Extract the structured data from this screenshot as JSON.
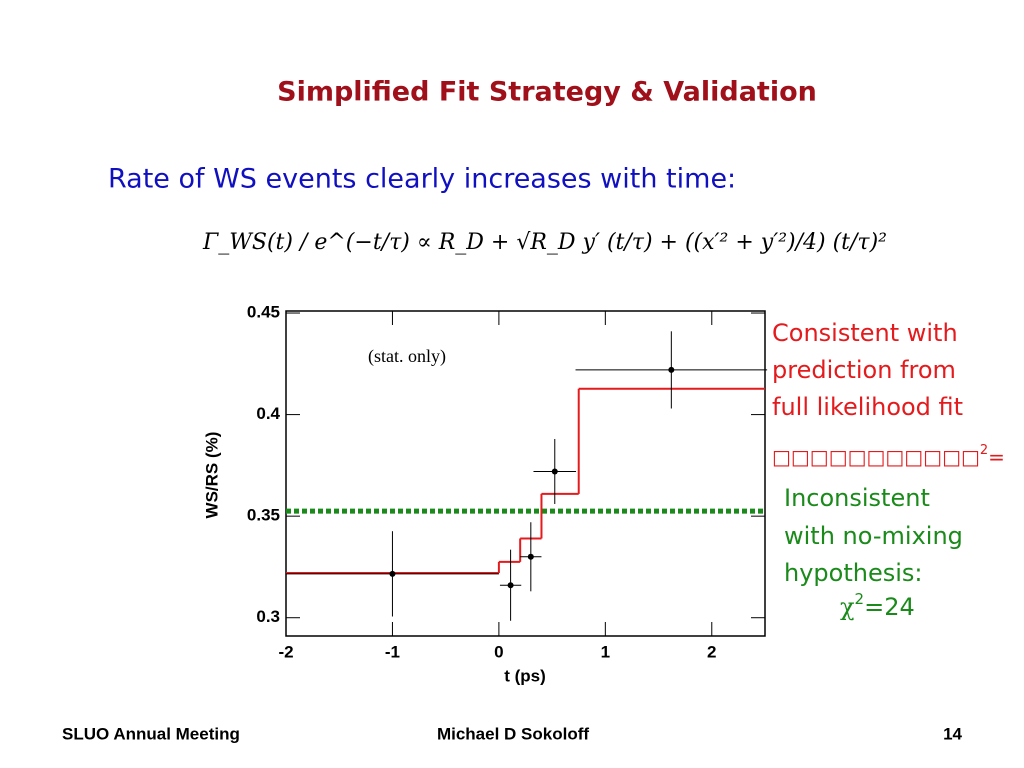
{
  "slide": {
    "title": "Simplified Fit Strategy & Validation",
    "subtitle": "Rate of WS events clearly increases with time:",
    "formula": "Γ_WS(t) / e^(−t/τ)  ∝  R_D + √R_D y′ (t/τ) + ((x′² + y′²)/4) (t/τ)²",
    "note1": [
      "Consistent with",
      "prediction from",
      "full likelihood fit"
    ],
    "note1_chi": "□□□□□□□□□□□",
    "note1_chi_sup": "2",
    "note1_chi_rest": "=",
    "note2": [
      "Inconsistent",
      "with no-mixing",
      "hypothesis:"
    ],
    "note2_chi": "χ",
    "note2_chi_sup": "2",
    "note2_chi_rest": "=24",
    "footer_left": "SLUO Annual Meeting",
    "footer_center": "Michael D Sokoloff",
    "footer_right": "14"
  },
  "chart_data": {
    "type": "errorbar",
    "xlabel": "t (ps)",
    "ylabel": "WS/RS (%)",
    "annotation": "(stat. only)",
    "xlim": [
      -2,
      2.5
    ],
    "ylim": [
      0.291,
      0.451
    ],
    "xticks": [
      -2,
      -1,
      0,
      1,
      2
    ],
    "yticks": [
      0.3,
      0.35,
      0.4,
      0.45
    ],
    "series": [
      {
        "x": [
          -1,
          0.11,
          0.3,
          0.525,
          1.62
        ],
        "values": [
          0.3216,
          0.316,
          0.33,
          0.372,
          0.422
        ],
        "xerr": [
          1,
          0.1,
          0.1,
          0.2,
          0.9
        ],
        "yerr": [
          0.021,
          0.0175,
          0.017,
          0.016,
          0.019
        ],
        "color": "#000000"
      }
    ],
    "fit": {
      "edges": [
        -2,
        0,
        0.2,
        0.4,
        0.75,
        2.5
      ],
      "values": [
        0.322,
        0.3275,
        0.339,
        0.361,
        0.4127
      ],
      "color": "#e41a1c"
    },
    "no_mixing": {
      "value": 0.3525,
      "color": "#1a8a1a"
    }
  }
}
